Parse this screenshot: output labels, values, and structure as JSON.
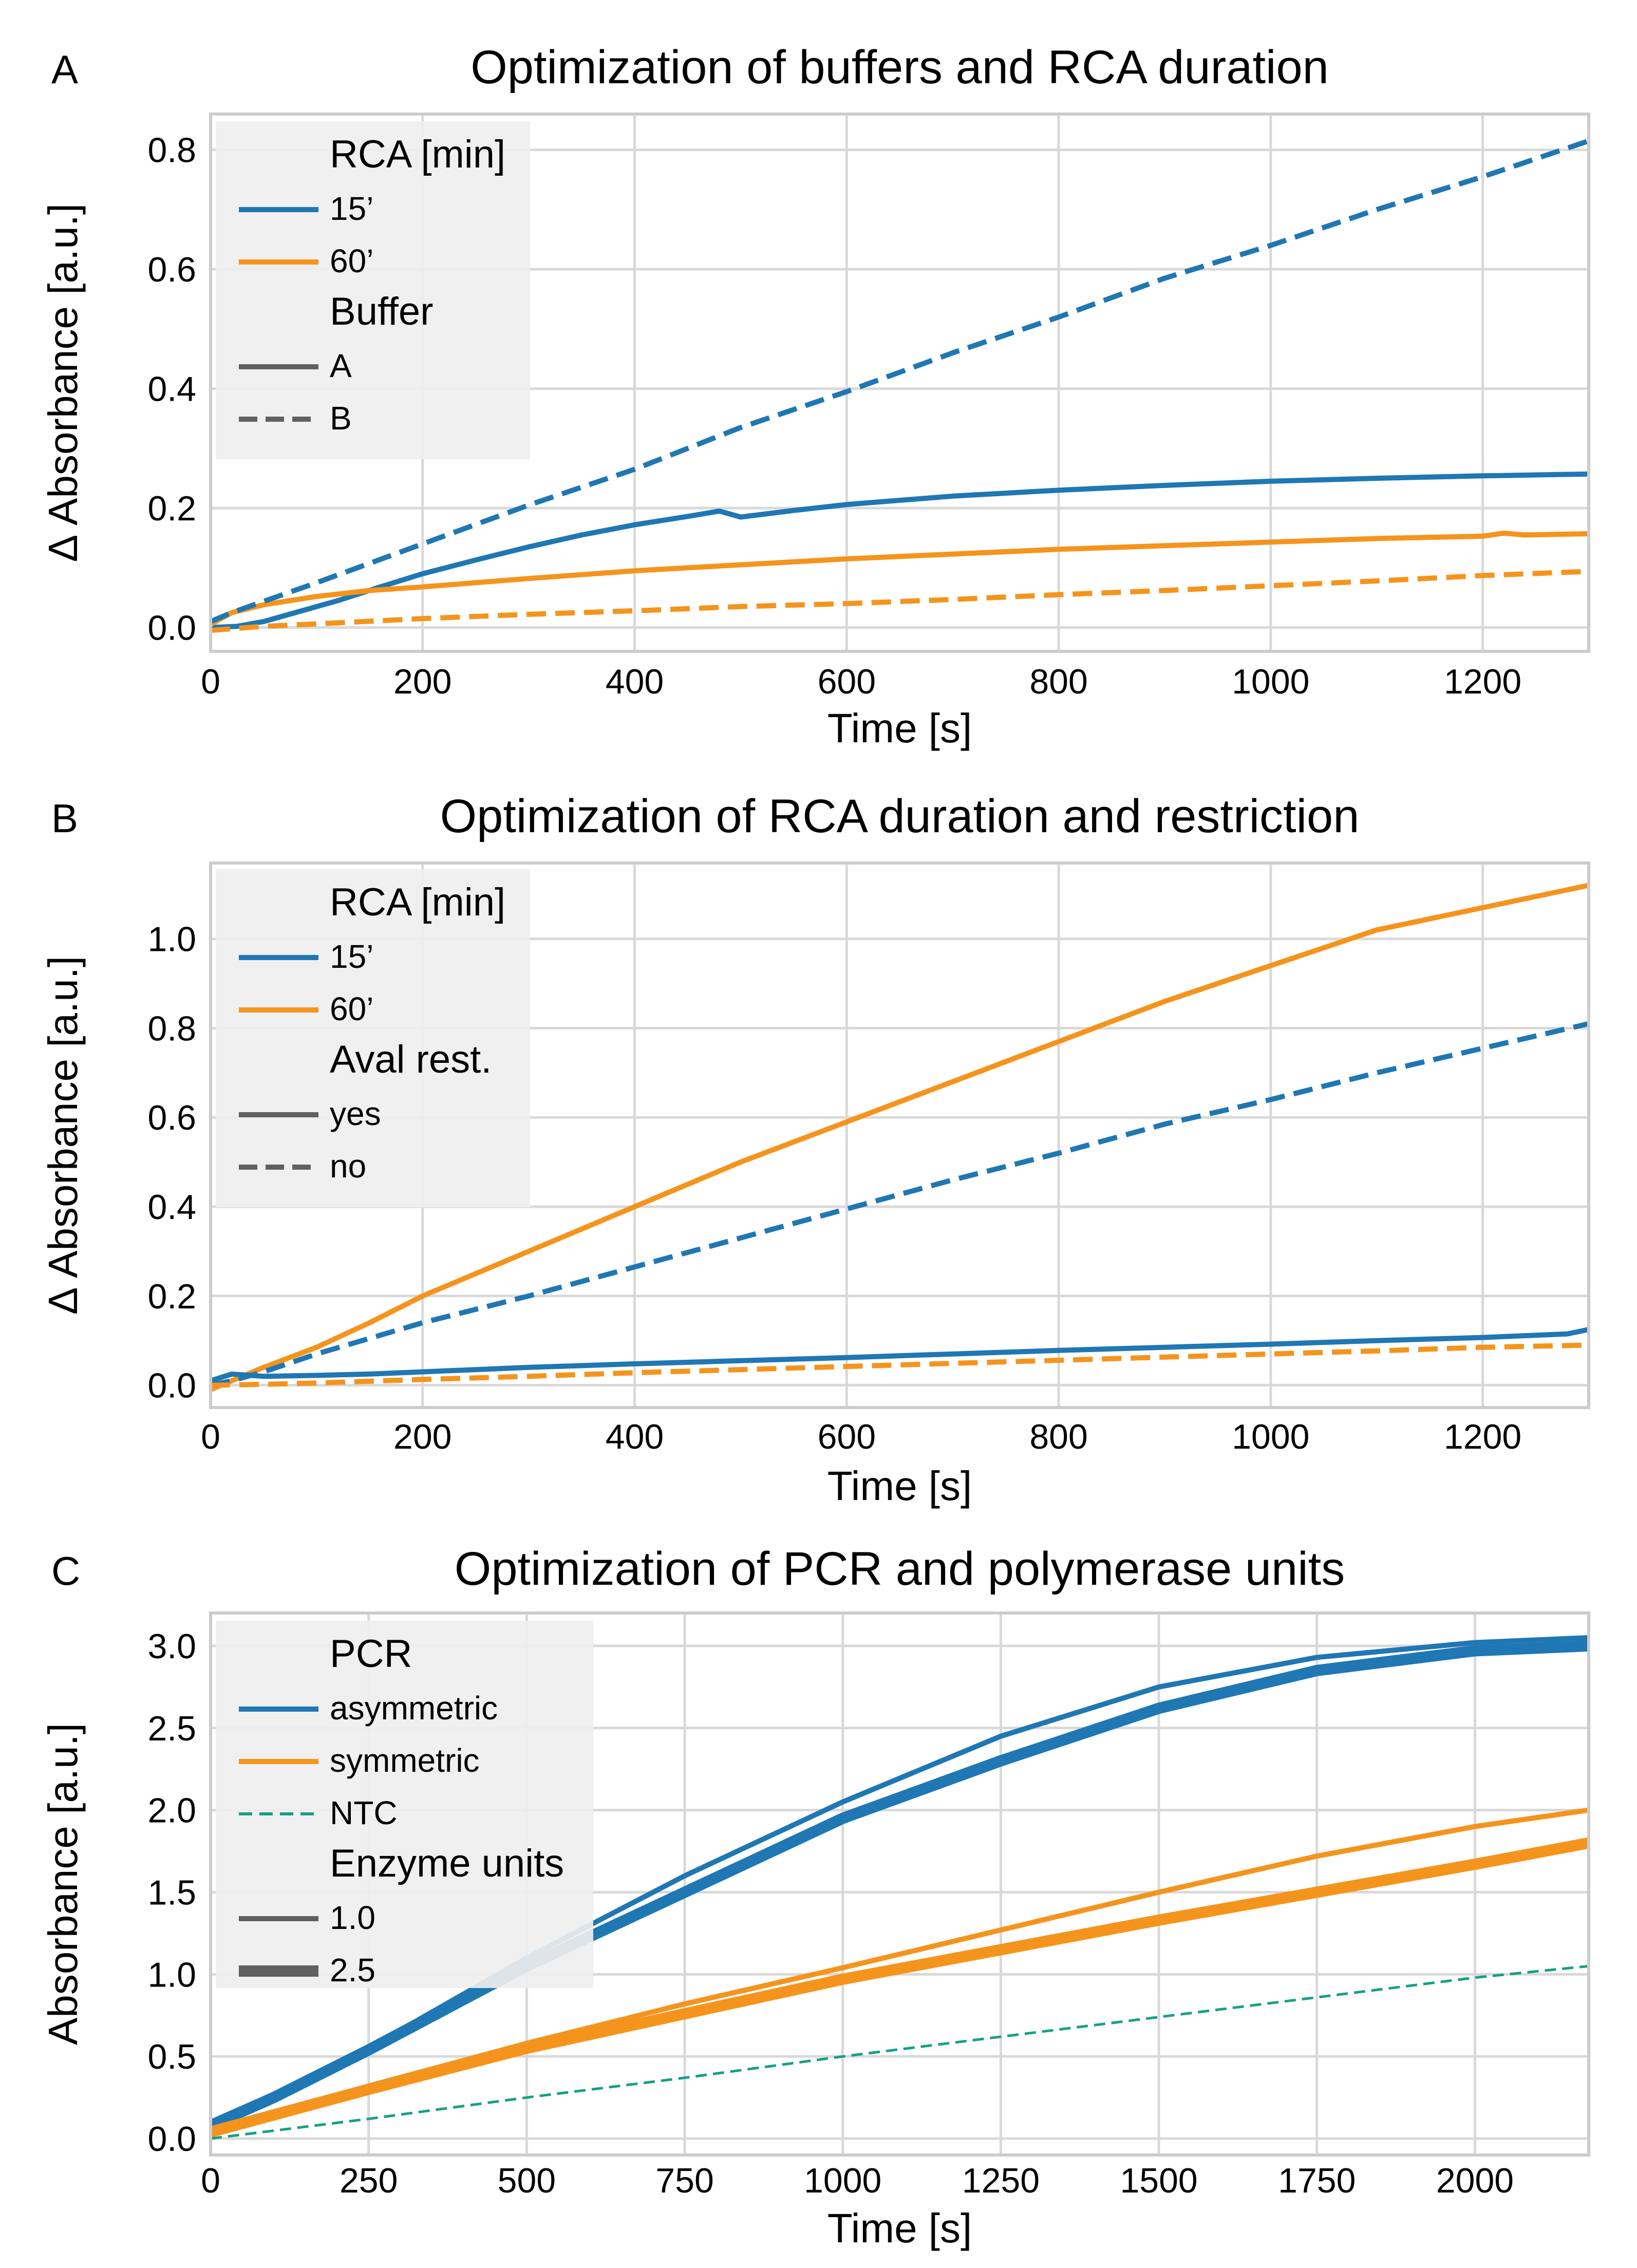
{
  "colors": {
    "blue": "#1f77b4",
    "blue_line": "#1a72bb",
    "orange": "#f5941d",
    "green": "#16a085",
    "grid": "#d9d9d9",
    "frame": "#cccccc",
    "legend_bg": "#efefef",
    "legend_line": "#606060"
  },
  "chart_data": [
    {
      "type": "line",
      "panel_label": "A",
      "title": "Optimization of buffers and RCA duration",
      "xlabel": "Time [s]",
      "ylabel": "Δ Absorbance [a.u.]",
      "xlim": [
        0,
        1300
      ],
      "ylim": [
        -0.04,
        0.86
      ],
      "xticks": [
        0,
        200,
        400,
        600,
        800,
        1000,
        1200
      ],
      "yticks": [
        0.0,
        0.2,
        0.4,
        0.6,
        0.8
      ],
      "xtick_labels": [
        "0",
        "200",
        "400",
        "600",
        "800",
        "1000",
        "1200"
      ],
      "ytick_labels": [
        "0.0",
        "0.2",
        "0.4",
        "0.6",
        "0.8"
      ],
      "legend": {
        "position": "upper-left",
        "sections": [
          {
            "title": "RCA [min]",
            "entries": [
              {
                "label": "15’",
                "color": "blue",
                "dash": "solid",
                "width": 10
              },
              {
                "label": "60’",
                "color": "orange",
                "dash": "solid",
                "width": 10
              }
            ]
          },
          {
            "title": "Buffer",
            "entries": [
              {
                "label": "A",
                "color": "legend_line",
                "dash": "solid",
                "width": 10
              },
              {
                "label": "B",
                "color": "legend_line",
                "dash": "dashed",
                "width": 10
              }
            ]
          }
        ]
      },
      "series": [
        {
          "name": "RCA 15’ / Buffer A",
          "color": "blue",
          "dash": "solid",
          "width": 10,
          "x": [
            0,
            25,
            50,
            80,
            120,
            160,
            200,
            250,
            300,
            350,
            400,
            450,
            480,
            490,
            500,
            550,
            600,
            700,
            800,
            900,
            1000,
            1100,
            1200,
            1300
          ],
          "y": [
            0.0,
            0.002,
            0.01,
            0.025,
            0.045,
            0.068,
            0.09,
            0.113,
            0.135,
            0.155,
            0.172,
            0.186,
            0.195,
            0.19,
            0.185,
            0.196,
            0.206,
            0.22,
            0.23,
            0.238,
            0.245,
            0.25,
            0.254,
            0.257
          ]
        },
        {
          "name": "RCA 60’ / Buffer A",
          "color": "orange",
          "dash": "solid",
          "width": 10,
          "x": [
            0,
            20,
            50,
            100,
            150,
            200,
            300,
            400,
            500,
            600,
            700,
            800,
            900,
            1000,
            1100,
            1200,
            1220,
            1240,
            1300
          ],
          "y": [
            0.005,
            0.025,
            0.038,
            0.052,
            0.062,
            0.068,
            0.082,
            0.095,
            0.105,
            0.115,
            0.123,
            0.131,
            0.137,
            0.143,
            0.149,
            0.153,
            0.158,
            0.155,
            0.157
          ]
        },
        {
          "name": "RCA 15’ / Buffer B",
          "color": "blue",
          "dash": "dashed",
          "width": 10,
          "x": [
            0,
            20,
            100,
            200,
            300,
            400,
            500,
            600,
            700,
            800,
            900,
            1000,
            1100,
            1200,
            1300
          ],
          "y": [
            0.01,
            0.025,
            0.075,
            0.14,
            0.205,
            0.265,
            0.335,
            0.395,
            0.46,
            0.52,
            0.585,
            0.64,
            0.7,
            0.755,
            0.815
          ]
        },
        {
          "name": "RCA 60’ / Buffer B",
          "color": "orange",
          "dash": "dashed",
          "width": 10,
          "x": [
            0,
            50,
            100,
            200,
            300,
            400,
            500,
            600,
            700,
            800,
            900,
            1000,
            1100,
            1200,
            1300
          ],
          "y": [
            -0.005,
            0.002,
            0.006,
            0.015,
            0.022,
            0.028,
            0.035,
            0.04,
            0.047,
            0.055,
            0.062,
            0.07,
            0.078,
            0.087,
            0.094
          ]
        }
      ]
    },
    {
      "type": "line",
      "panel_label": "B",
      "title": "Optimization of RCA duration and restriction",
      "xlabel": "Time [s]",
      "ylabel": "Δ Absorbance [a.u.]",
      "xlim": [
        0,
        1300
      ],
      "ylim": [
        -0.05,
        1.17
      ],
      "xticks": [
        0,
        200,
        400,
        600,
        800,
        1000,
        1200
      ],
      "yticks": [
        0.0,
        0.2,
        0.4,
        0.6,
        0.8,
        1.0
      ],
      "xtick_labels": [
        "0",
        "200",
        "400",
        "600",
        "800",
        "1000",
        "1200"
      ],
      "ytick_labels": [
        "0.0",
        "0.2",
        "0.4",
        "0.6",
        "0.8",
        "1.0"
      ],
      "legend": {
        "position": "upper-left",
        "sections": [
          {
            "title": "RCA [min]",
            "entries": [
              {
                "label": "15’",
                "color": "blue",
                "dash": "solid",
                "width": 10
              },
              {
                "label": "60’",
                "color": "orange",
                "dash": "solid",
                "width": 10
              }
            ]
          },
          {
            "title": "Aval rest.",
            "entries": [
              {
                "label": "yes",
                "color": "legend_line",
                "dash": "solid",
                "width": 10
              },
              {
                "label": "no",
                "color": "legend_line",
                "dash": "dashed",
                "width": 10
              }
            ]
          }
        ]
      },
      "series": [
        {
          "name": "RCA 60’ / restriction yes",
          "color": "orange",
          "dash": "solid",
          "width": 10,
          "x": [
            0,
            20,
            50,
            100,
            150,
            200,
            300,
            400,
            500,
            600,
            700,
            800,
            900,
            1000,
            1100,
            1200,
            1300
          ],
          "y": [
            -0.01,
            0.01,
            0.04,
            0.085,
            0.14,
            0.2,
            0.3,
            0.4,
            0.5,
            0.59,
            0.68,
            0.77,
            0.86,
            0.94,
            1.02,
            1.07,
            1.12
          ]
        },
        {
          "name": "RCA 15’ / restriction no",
          "color": "blue",
          "dash": "dashed",
          "width": 10,
          "x": [
            0,
            20,
            50,
            100,
            200,
            300,
            400,
            500,
            600,
            700,
            800,
            900,
            1000,
            1100,
            1200,
            1300
          ],
          "y": [
            0.0,
            0.01,
            0.03,
            0.07,
            0.14,
            0.2,
            0.265,
            0.33,
            0.395,
            0.46,
            0.52,
            0.585,
            0.64,
            0.7,
            0.755,
            0.81
          ]
        },
        {
          "name": "RCA 15’ / restriction yes",
          "color": "blue",
          "dash": "solid",
          "width": 10,
          "x": [
            0,
            20,
            50,
            100,
            150,
            200,
            300,
            400,
            500,
            600,
            700,
            800,
            900,
            1000,
            1100,
            1200,
            1280,
            1300
          ],
          "y": [
            0.01,
            0.025,
            0.02,
            0.022,
            0.025,
            0.03,
            0.04,
            0.048,
            0.055,
            0.062,
            0.07,
            0.078,
            0.085,
            0.092,
            0.1,
            0.107,
            0.115,
            0.125
          ]
        },
        {
          "name": "RCA 60’ / restriction no",
          "color": "orange",
          "dash": "dashed",
          "width": 10,
          "x": [
            0,
            50,
            100,
            200,
            300,
            400,
            500,
            600,
            700,
            800,
            900,
            1000,
            1100,
            1200,
            1300
          ],
          "y": [
            0.0,
            0.002,
            0.005,
            0.013,
            0.02,
            0.028,
            0.035,
            0.042,
            0.049,
            0.056,
            0.063,
            0.07,
            0.077,
            0.085,
            0.09
          ]
        }
      ]
    },
    {
      "type": "line",
      "panel_label": "C",
      "title": "Optimization of PCR and polymerase units",
      "xlabel": "Time [s]",
      "ylabel": "Absorbance [a.u.]",
      "xlim": [
        0,
        2180
      ],
      "ylim": [
        -0.1,
        3.2
      ],
      "xticks": [
        0,
        250,
        500,
        750,
        1000,
        1250,
        1500,
        1750,
        2000
      ],
      "yticks": [
        0.0,
        0.5,
        1.0,
        1.5,
        2.0,
        2.5,
        3.0
      ],
      "xtick_labels": [
        "0",
        "250",
        "500",
        "750",
        "1000",
        "1250",
        "1500",
        "1750",
        "2000"
      ],
      "ytick_labels": [
        "0.0",
        "0.5",
        "1.0",
        "1.5",
        "2.0",
        "2.5",
        "3.0"
      ],
      "legend": {
        "position": "upper-left",
        "sections": [
          {
            "title": "PCR",
            "entries": [
              {
                "label": "asymmetric",
                "color": "blue",
                "dash": "solid",
                "width": 10
              },
              {
                "label": "symmetric",
                "color": "orange",
                "dash": "solid",
                "width": 10
              },
              {
                "label": "NTC",
                "color": "green",
                "dash": "dashed",
                "width": 6
              }
            ]
          },
          {
            "title": "Enzyme units",
            "entries": [
              {
                "label": "1.0",
                "color": "legend_line",
                "dash": "solid",
                "width": 10
              },
              {
                "label": "2.5",
                "color": "legend_line",
                "dash": "solid",
                "width": 22
              }
            ]
          }
        ]
      },
      "series": [
        {
          "name": "asymmetric / 1.0 units",
          "color": "blue",
          "dash": "solid",
          "width": 10,
          "x": [
            0,
            100,
            250,
            500,
            750,
            1000,
            1250,
            1500,
            1750,
            2000,
            2180
          ],
          "y": [
            0.1,
            0.25,
            0.55,
            1.1,
            1.6,
            2.05,
            2.45,
            2.75,
            2.93,
            3.02,
            3.05
          ]
        },
        {
          "name": "asymmetric / 2.5 units",
          "color": "blue",
          "dash": "solid",
          "width": 22,
          "x": [
            0,
            100,
            250,
            500,
            750,
            1000,
            1250,
            1500,
            1750,
            2000,
            2180
          ],
          "y": [
            0.08,
            0.25,
            0.54,
            1.05,
            1.5,
            1.95,
            2.3,
            2.62,
            2.85,
            2.97,
            3.0
          ]
        },
        {
          "name": "symmetric / 1.0 units",
          "color": "orange",
          "dash": "solid",
          "width": 10,
          "x": [
            0,
            250,
            500,
            750,
            1000,
            1250,
            1500,
            1750,
            2000,
            2180
          ],
          "y": [
            0.05,
            0.32,
            0.58,
            0.82,
            1.04,
            1.27,
            1.5,
            1.72,
            1.9,
            2.0
          ]
        },
        {
          "name": "symmetric / 2.5 units",
          "color": "orange",
          "dash": "solid",
          "width": 22,
          "x": [
            0,
            250,
            500,
            750,
            1000,
            1250,
            1500,
            1750,
            2000,
            2180
          ],
          "y": [
            0.04,
            0.3,
            0.55,
            0.76,
            0.97,
            1.15,
            1.33,
            1.5,
            1.67,
            1.8
          ]
        },
        {
          "name": "NTC",
          "color": "green",
          "dash": "dashed",
          "width": 5,
          "x": [
            0,
            250,
            500,
            750,
            1000,
            1250,
            1500,
            1750,
            2000,
            2180
          ],
          "y": [
            0.0,
            0.12,
            0.25,
            0.37,
            0.5,
            0.62,
            0.74,
            0.86,
            0.98,
            1.05
          ]
        }
      ]
    }
  ]
}
